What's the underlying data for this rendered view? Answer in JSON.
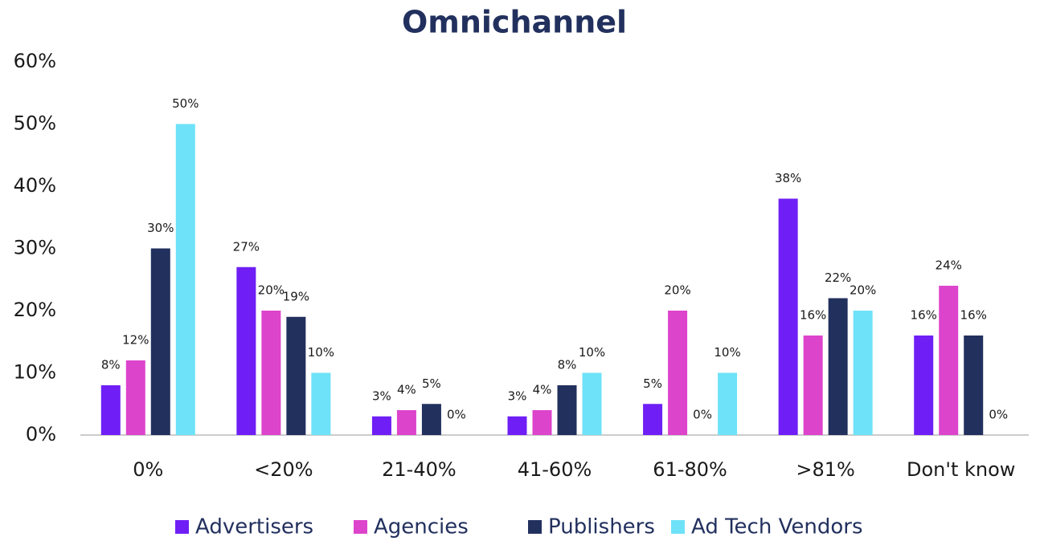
{
  "chart_data": {
    "type": "bar",
    "title": "Omnichannel",
    "categories": [
      "0%",
      "<20%",
      "21-40%",
      "41-60%",
      "61-80%",
      ">81%",
      "Don't know"
    ],
    "series": [
      {
        "name": "Advertisers",
        "color": "#6f1ff5",
        "values": [
          8,
          27,
          3,
          3,
          5,
          38,
          16
        ],
        "value_labels": [
          "8%",
          "27%",
          "3%",
          "3%",
          "5%",
          "38%",
          "16%"
        ]
      },
      {
        "name": "Agencies",
        "color": "#dd44cc",
        "values": [
          12,
          20,
          4,
          4,
          20,
          16,
          24
        ],
        "value_labels": [
          "12%",
          "20%",
          "4%",
          "4%",
          "20%",
          "16%",
          "24%"
        ]
      },
      {
        "name": "Publishers",
        "color": "#22305e",
        "values": [
          30,
          19,
          5,
          8,
          0,
          22,
          16
        ],
        "value_labels": [
          "30%",
          "19%",
          "5%",
          "8%",
          "0%",
          "22%",
          "16%"
        ]
      },
      {
        "name": "Ad Tech Vendors",
        "color": "#6ee2f8",
        "values": [
          50,
          10,
          0,
          10,
          10,
          20,
          0
        ],
        "value_labels": [
          "50%",
          "10%",
          "0%",
          "10%",
          "10%",
          "20%",
          "0%"
        ]
      }
    ],
    "ylim": [
      0,
      60
    ],
    "yticks": [
      {
        "value": 0,
        "label": "0%"
      },
      {
        "value": 10,
        "label": "10%"
      },
      {
        "value": 20,
        "label": "20%"
      },
      {
        "value": 30,
        "label": "30%"
      },
      {
        "value": 40,
        "label": "40%"
      },
      {
        "value": 50,
        "label": "50%"
      },
      {
        "value": 60,
        "label": "60%"
      }
    ],
    "grid": false,
    "legend": "bottom"
  }
}
